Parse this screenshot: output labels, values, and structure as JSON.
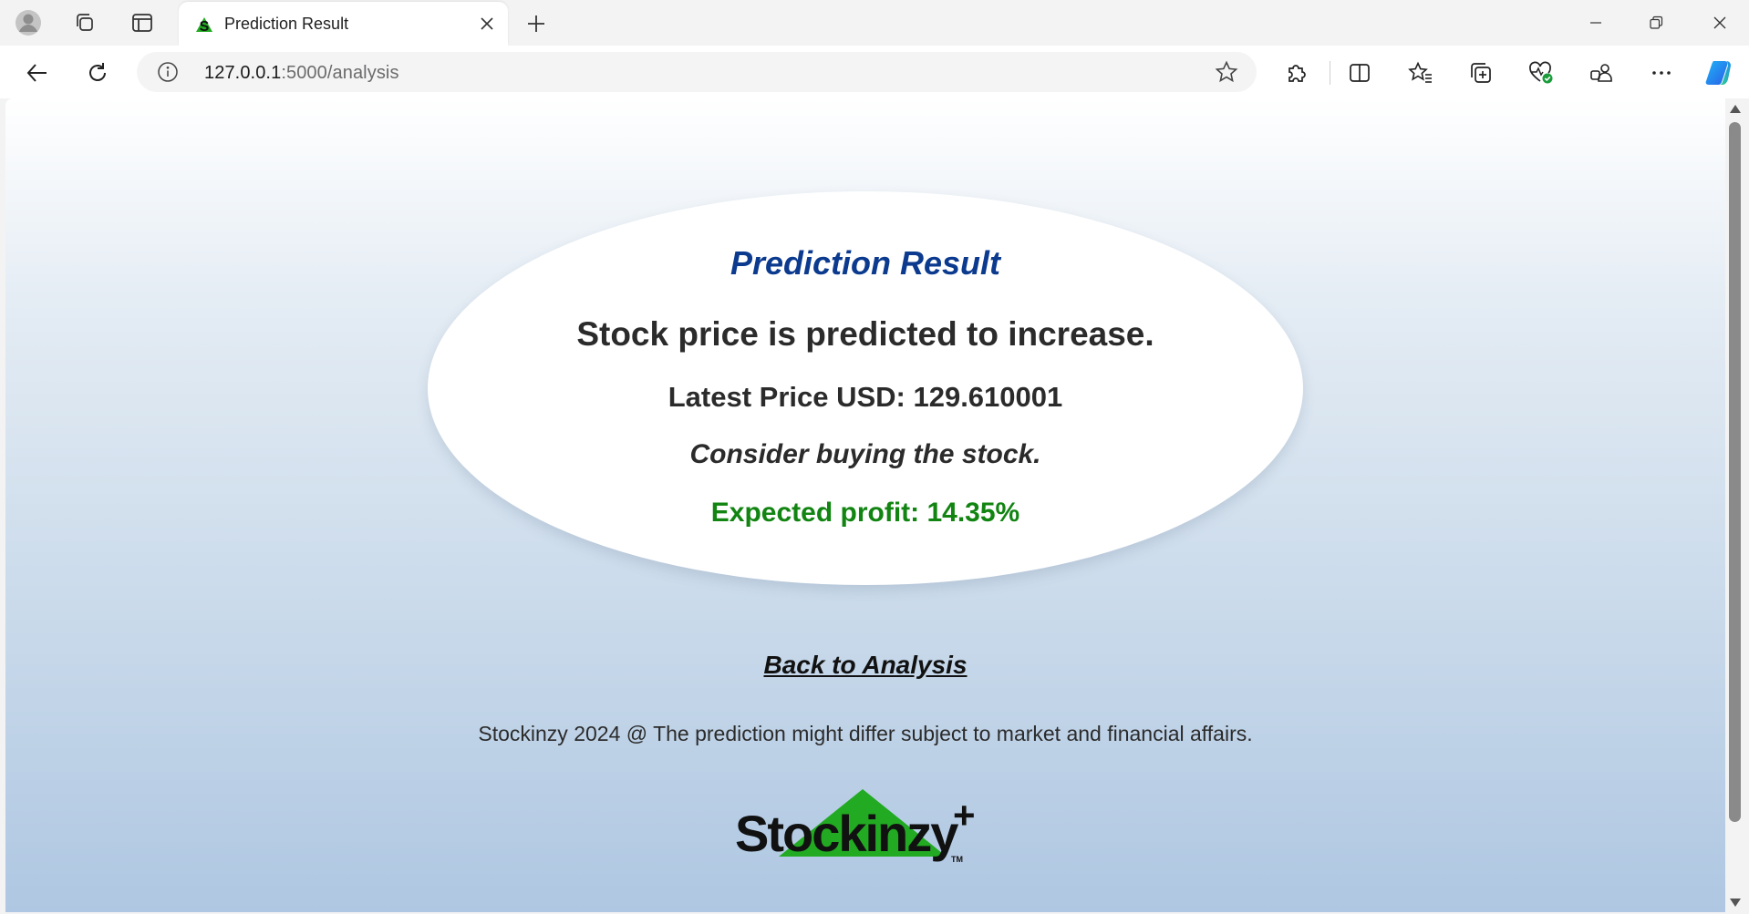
{
  "browser": {
    "tab": {
      "title": "Prediction Result"
    },
    "address_bar": {
      "host": "127.0.0.1",
      "rest": ":5000/analysis"
    }
  },
  "page": {
    "heading": "Prediction Result",
    "prediction": "Stock price is predicted to increase.",
    "latest_price": "Latest Price USD: 129.610001",
    "advice": "Consider buying the stock.",
    "expected_profit": "Expected profit: 14.35%",
    "back_link": "Back to Analysis",
    "footer": "Stockinzy 2024 @ The prediction might differ subject to market and financial affairs.",
    "logo": {
      "text": "Stockinzy",
      "tm": "TM"
    }
  },
  "colors": {
    "heading": "#0b3a8e",
    "profit": "#118411",
    "logo_green": "#22aa22"
  }
}
